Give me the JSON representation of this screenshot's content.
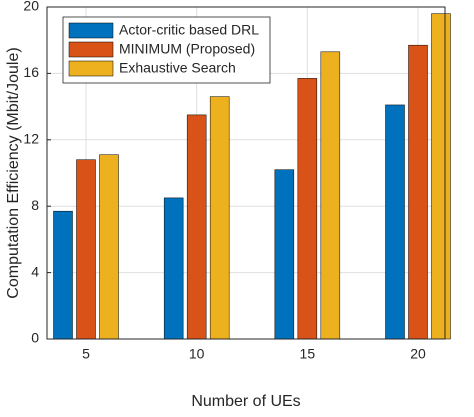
{
  "chart_data": {
    "type": "bar",
    "categories": [
      "5",
      "10",
      "15",
      "20"
    ],
    "series": [
      {
        "name": "Actor-critic based DRL",
        "color": "#0072BD",
        "values": [
          7.7,
          8.5,
          10.2,
          14.1
        ]
      },
      {
        "name": "MINIMUM (Proposed)",
        "color": "#D95319",
        "values": [
          10.8,
          13.5,
          15.7,
          17.7
        ]
      },
      {
        "name": "Exhaustive Search",
        "color": "#EDB120",
        "values": [
          11.1,
          14.6,
          17.3,
          19.6
        ]
      }
    ],
    "xlabel": "Number of UEs",
    "ylabel": "Computation Efficiency (Mbit/Joule)",
    "ylim": [
      0,
      20
    ],
    "yticks": [
      0,
      4,
      8,
      12,
      16,
      20
    ],
    "grid": true,
    "legend": "upper-left"
  }
}
